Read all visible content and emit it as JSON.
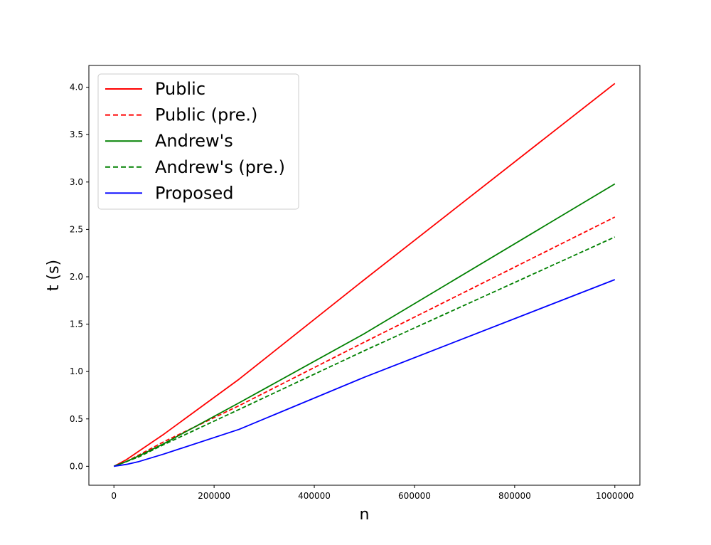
{
  "chart_data": {
    "type": "line",
    "title": "",
    "xlabel": "n",
    "ylabel": "t (s)",
    "xlim": [
      -50000,
      1050000
    ],
    "ylim": [
      -0.2,
      4.23
    ],
    "xticks": [
      0,
      200000,
      400000,
      600000,
      800000,
      1000000
    ],
    "xtick_labels": [
      "0",
      "200000",
      "400000",
      "600000",
      "800000",
      "1000000"
    ],
    "yticks": [
      0.0,
      0.5,
      1.0,
      1.5,
      2.0,
      2.5,
      3.0,
      3.5,
      4.0
    ],
    "ytick_labels": [
      "0.0",
      "0.5",
      "1.0",
      "1.5",
      "2.0",
      "2.5",
      "3.0",
      "3.5",
      "4.0"
    ],
    "grid": false,
    "legend_position": "top-left",
    "series": [
      {
        "name": "Public",
        "color": "#ff0000",
        "linestyle": "solid",
        "x": [
          0,
          25000,
          50000,
          100000,
          250000,
          500000,
          1000000
        ],
        "y": [
          0.0,
          0.07,
          0.16,
          0.34,
          0.92,
          1.97,
          4.04
        ]
      },
      {
        "name": "Public (pre.)",
        "color": "#ff0000",
        "linestyle": "dashed",
        "x": [
          0,
          25000,
          50000,
          100000,
          250000,
          500000,
          1000000
        ],
        "y": [
          0.0,
          0.05,
          0.12,
          0.26,
          0.64,
          1.31,
          2.63
        ]
      },
      {
        "name": "Andrew's",
        "color": "#008000",
        "linestyle": "solid",
        "x": [
          0,
          25000,
          50000,
          100000,
          250000,
          500000,
          1000000
        ],
        "y": [
          0.0,
          0.05,
          0.11,
          0.24,
          0.67,
          1.4,
          2.98
        ]
      },
      {
        "name": "Andrew's (pre.)",
        "color": "#008000",
        "linestyle": "dashed",
        "x": [
          0,
          25000,
          50000,
          100000,
          250000,
          500000,
          1000000
        ],
        "y": [
          0.0,
          0.05,
          0.1,
          0.23,
          0.6,
          1.22,
          2.42
        ]
      },
      {
        "name": "Proposed",
        "color": "#0000ff",
        "linestyle": "solid",
        "x": [
          0,
          25000,
          50000,
          100000,
          250000,
          500000,
          1000000
        ],
        "y": [
          0.0,
          0.02,
          0.05,
          0.13,
          0.39,
          0.94,
          1.97
        ]
      }
    ]
  }
}
